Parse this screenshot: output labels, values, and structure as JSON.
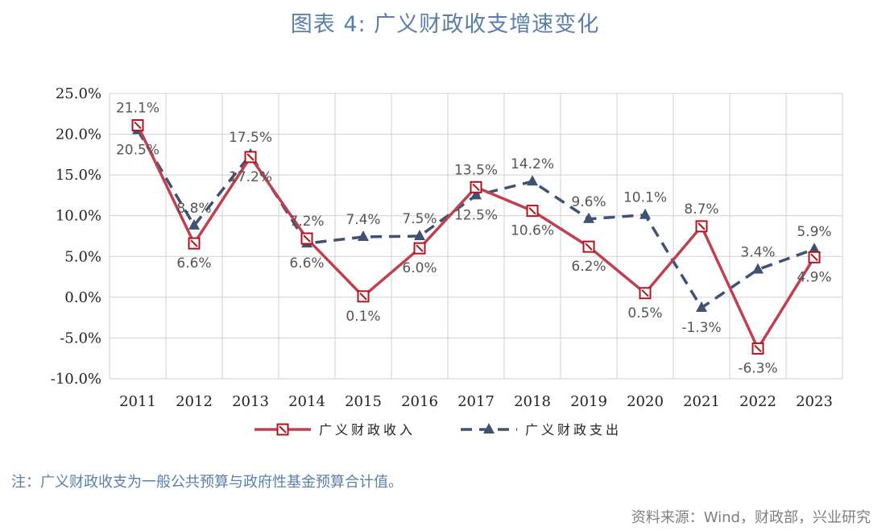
{
  "title": "图表 4:  广义财政收支增速变化",
  "note": "注：广义财政收支为一般公共预算与政府性基金预算合计值。",
  "source": "资料来源：Wind，财政部，兴业研究",
  "chart_data": {
    "type": "line",
    "categories": [
      "2011",
      "2012",
      "2013",
      "2014",
      "2015",
      "2016",
      "2017",
      "2018",
      "2019",
      "2020",
      "2021",
      "2022",
      "2023"
    ],
    "yticks": [
      "-10.0%",
      "-5.0%",
      "0.0%",
      "5.0%",
      "10.0%",
      "15.0%",
      "20.0%",
      "25.0%"
    ],
    "ylim": [
      -10,
      25
    ],
    "grid": true,
    "legend_position": "bottom",
    "series": [
      {
        "name": "广义财政收入",
        "color": "#c0404f",
        "style": "solid",
        "values": [
          21.1,
          6.6,
          17.2,
          7.2,
          0.1,
          6.0,
          13.5,
          10.6,
          6.2,
          0.5,
          8.7,
          -6.3,
          4.9
        ],
        "labels": [
          "21.1%",
          "6.6%",
          "17.2%",
          "7.2%",
          "0.1%",
          "6.0%",
          "13.5%",
          "10.6%",
          "6.2%",
          "0.5%",
          "8.7%",
          "-6.3%",
          "4.9%"
        ]
      },
      {
        "name": "广义财政支出",
        "color": "#3f5272",
        "style": "dashed",
        "values": [
          20.5,
          8.8,
          17.5,
          6.6,
          7.4,
          7.5,
          12.5,
          14.2,
          9.6,
          10.1,
          -1.3,
          3.4,
          5.9
        ],
        "labels": [
          "20.5%",
          "8.8%",
          "17.5%",
          "6.6%",
          "7.4%",
          "7.5%",
          "12.5%",
          "14.2%",
          "9.6%",
          "10.1%",
          "-1.3%",
          "3.4%",
          "5.9%"
        ]
      }
    ]
  }
}
